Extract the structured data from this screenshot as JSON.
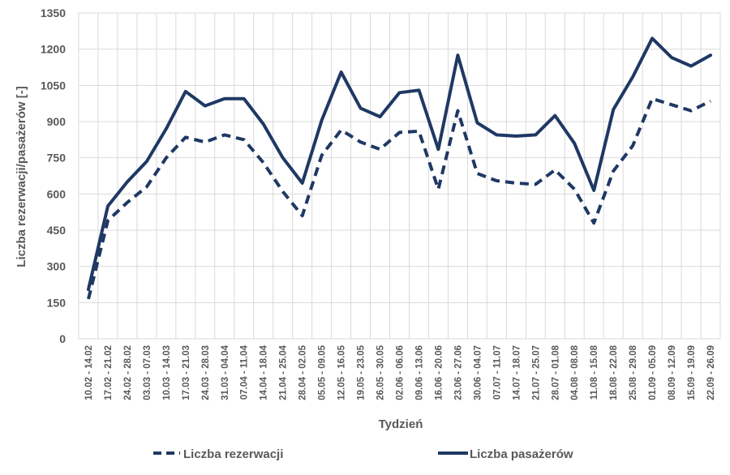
{
  "chart_data": {
    "type": "line",
    "title": "",
    "xlabel": "Tydzień",
    "ylabel": "Liczba rezerwacji/pasażerów [-]",
    "ylim": [
      0,
      1350
    ],
    "yticks": [
      0,
      150,
      300,
      450,
      600,
      750,
      900,
      1050,
      1200,
      1350
    ],
    "grid": true,
    "legend": "bottom",
    "colors": {
      "series": "#1f3864",
      "grid": "#d9d9d9",
      "text": "#595959"
    },
    "categories": [
      "10.02 - 14.02",
      "17.02 - 21.02",
      "24.02 - 28.02",
      "03.03 - 07.03",
      "10.03 - 14.03",
      "17.03 - 21.03",
      "24.03 - 28.03",
      "31.03 - 04.04",
      "07.04 - 11.04",
      "14.04 - 18.04",
      "21.04 - 25.04",
      "28.04 - 02.05",
      "05.05 - 09.05",
      "12.05 - 16.05",
      "19.05 - 23.05",
      "26.05 - 30.05",
      "02.06 - 06.06",
      "09.06 - 13.06",
      "16.06 - 20.06",
      "23.06 - 27.06",
      "30.06 - 04.07",
      "07.07 - 11.07",
      "14.07 - 18.07",
      "21.07 - 25.07",
      "28.07 - 01.08",
      "04.08 - 08.08",
      "11.08 - 15.08",
      "18.08 - 22.08",
      "25.08 - 29.08",
      "01.09 - 05.09",
      "08.09 - 12.09",
      "15.09 - 19.09",
      "22.09 - 26.09"
    ],
    "series": [
      {
        "name": "Liczba rezerwacji",
        "style": "dashed",
        "values": [
          165,
          490,
          565,
          630,
          750,
          835,
          815,
          845,
          825,
          730,
          610,
          510,
          760,
          865,
          815,
          785,
          855,
          860,
          620,
          945,
          685,
          655,
          645,
          640,
          700,
          620,
          480,
          695,
          800,
          995,
          970,
          945,
          985
        ]
      },
      {
        "name": "Liczba pasażerów",
        "style": "solid",
        "values": [
          205,
          550,
          650,
          735,
          870,
          1025,
          965,
          995,
          995,
          890,
          750,
          645,
          905,
          1105,
          955,
          920,
          1020,
          1030,
          785,
          1175,
          895,
          845,
          840,
          845,
          925,
          810,
          615,
          950,
          1085,
          1245,
          1165,
          1130,
          1175
        ]
      }
    ]
  }
}
